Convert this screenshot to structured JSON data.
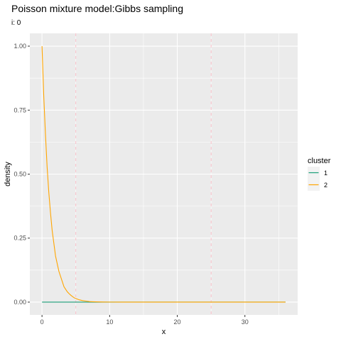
{
  "chart_data": {
    "type": "line",
    "title": "Poisson mixture model:Gibbs sampling",
    "subtitle": "i: 0",
    "xlabel": "x",
    "ylabel": "density",
    "xlim": [
      -1.8,
      37.8
    ],
    "ylim": [
      -0.05,
      1.05
    ],
    "x_ticks": [
      0,
      10,
      20,
      30
    ],
    "y_ticks": [
      0.0,
      0.25,
      0.5,
      0.75,
      1.0
    ],
    "x_tick_labels": [
      "0",
      "10",
      "20",
      "30"
    ],
    "y_tick_labels": [
      "0.00",
      "0.25",
      "0.50",
      "0.75",
      "1.00"
    ],
    "grid": true,
    "legend_position": "right",
    "legend_title": "cluster",
    "series": [
      {
        "name": "1",
        "color": "#1b9e77",
        "x": [
          0,
          1,
          2,
          3,
          4,
          5,
          6,
          7,
          8,
          9,
          10,
          11,
          12,
          13,
          14,
          15,
          16,
          17,
          18,
          19,
          20,
          21,
          22,
          23,
          24,
          25,
          26,
          27,
          28,
          29,
          30,
          31,
          32,
          33,
          34,
          35,
          36
        ],
        "y": [
          0,
          0,
          0,
          0,
          0,
          0,
          0,
          0,
          0,
          0,
          0,
          0,
          0,
          0,
          0,
          0,
          0,
          0,
          0,
          0,
          0,
          0,
          0,
          0,
          0,
          0,
          0,
          0,
          0,
          0,
          0,
          0,
          0,
          0,
          0,
          0,
          0
        ]
      },
      {
        "name": "2",
        "color": "#ffa500",
        "x": [
          0,
          0.25,
          0.5,
          0.75,
          1,
          1.25,
          1.5,
          1.75,
          2,
          2.25,
          2.5,
          2.75,
          3,
          3.25,
          3.5,
          3.75,
          4,
          4.25,
          4.5,
          4.75,
          5,
          5.5,
          6,
          6.5,
          7,
          8,
          9,
          10,
          12,
          15,
          20,
          25,
          30,
          36
        ],
        "y": [
          1.0,
          0.81,
          0.66,
          0.53,
          0.43,
          0.35,
          0.28,
          0.23,
          0.18,
          0.15,
          0.12,
          0.1,
          0.08,
          0.06,
          0.05,
          0.04,
          0.033,
          0.027,
          0.022,
          0.017,
          0.014,
          0.009,
          0.006,
          0.004,
          0.002,
          0.001,
          0.0005,
          0.0002,
          0,
          0,
          0,
          0,
          0,
          0
        ]
      }
    ],
    "vlines": [
      {
        "x": 5,
        "color": "#ffb6c1",
        "style": "dashed"
      },
      {
        "x": 25,
        "color": "#ffb6c1",
        "style": "dashed"
      }
    ]
  }
}
